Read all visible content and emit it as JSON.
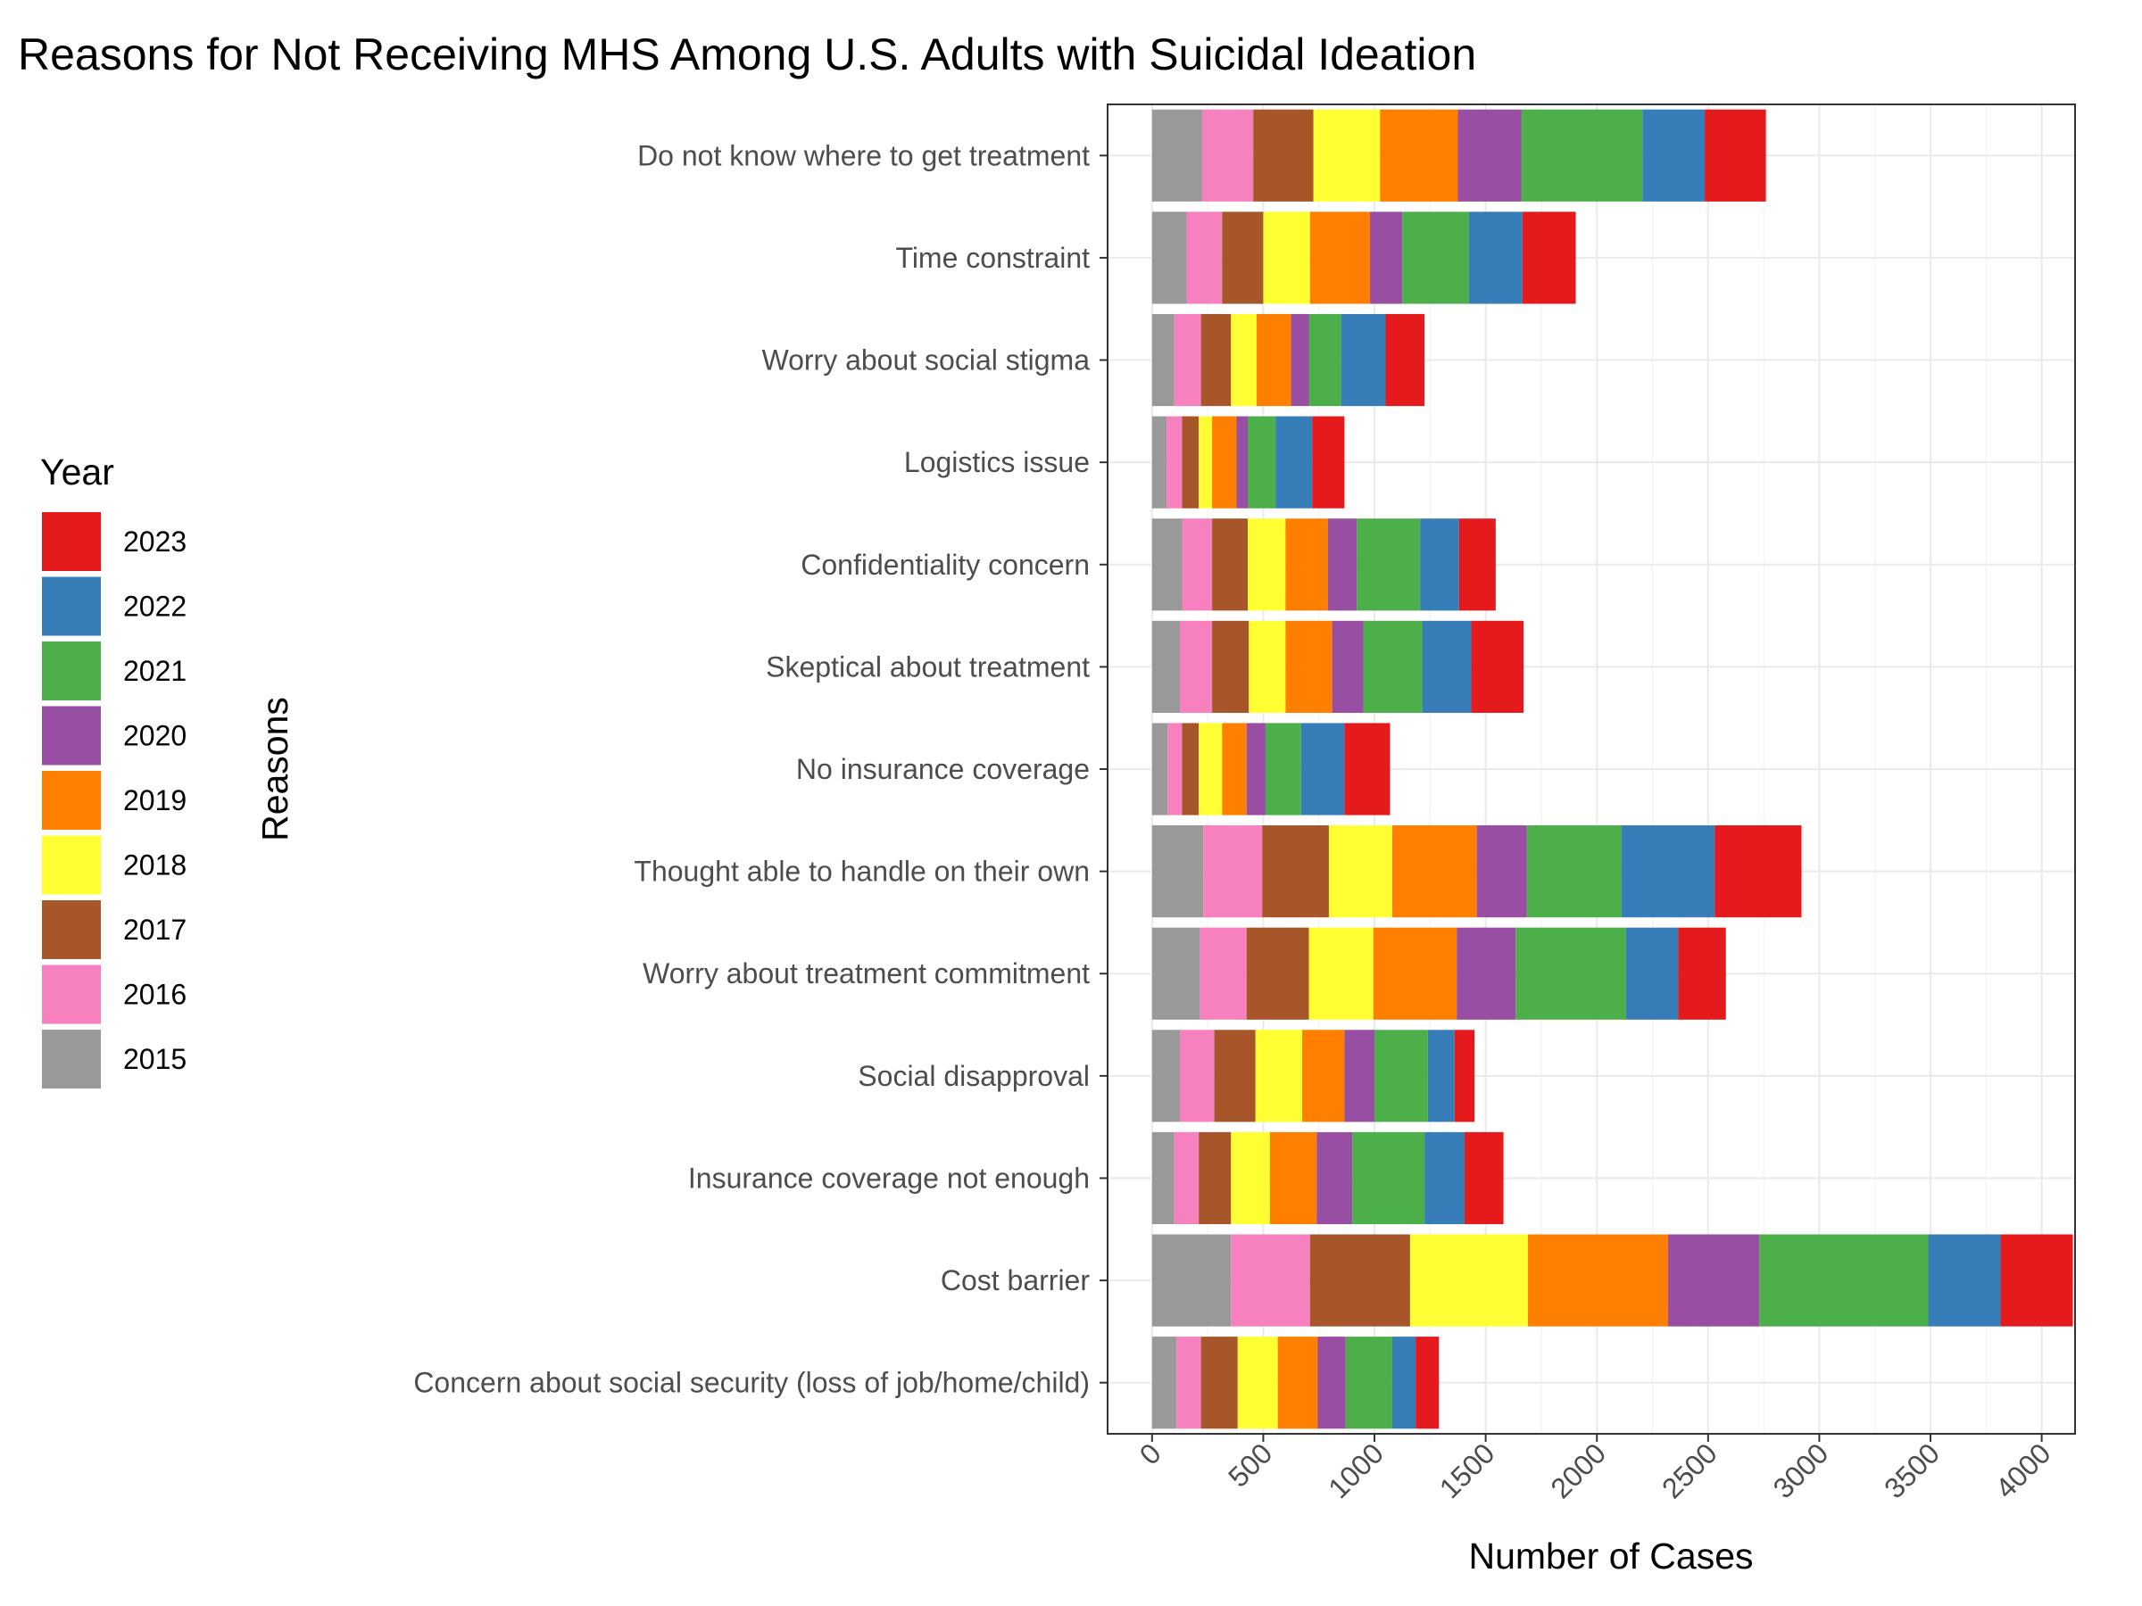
{
  "chart_data": {
    "type": "bar",
    "orientation": "horizontal",
    "stacked": true,
    "title": "Reasons for Not Receiving MHS Among U.S. Adults with Suicidal Ideation",
    "xlabel": "Number of Cases",
    "ylabel": "Reasons",
    "xlim": [
      -200,
      4150
    ],
    "xticks": [
      0,
      500,
      1000,
      1500,
      2000,
      2500,
      3000,
      3500,
      4000
    ],
    "grid": true,
    "legend": {
      "title": "Year",
      "position": "left"
    },
    "categories": [
      "Do not know where to get treatment",
      "Time constraint",
      "Worry about social stigma",
      "Logistics issue",
      "Confidentiality concern",
      "Skeptical about treatment",
      "No insurance coverage",
      "Thought able to handle on their own",
      "Worry about treatment commitment",
      "Social disapproval",
      "Insurance coverage not enough",
      "Cost barrier",
      "Concern about social security (loss of job/home/child)"
    ],
    "series": [
      {
        "name": "2015",
        "color": "#999999",
        "values": [
          225,
          155,
          100,
          65,
          135,
          125,
          70,
          230,
          215,
          125,
          100,
          355,
          110
        ]
      },
      {
        "name": "2016",
        "color": "#F781BF",
        "values": [
          230,
          160,
          120,
          70,
          135,
          145,
          65,
          265,
          210,
          155,
          110,
          355,
          110
        ]
      },
      {
        "name": "2017",
        "color": "#A65628",
        "values": [
          270,
          185,
          135,
          75,
          160,
          165,
          75,
          300,
          280,
          185,
          145,
          450,
          165
        ]
      },
      {
        "name": "2018",
        "color": "#FFFF33",
        "values": [
          300,
          210,
          115,
          60,
          170,
          165,
          105,
          285,
          290,
          210,
          175,
          530,
          180
        ]
      },
      {
        "name": "2019",
        "color": "#FF7F00",
        "values": [
          350,
          270,
          155,
          110,
          190,
          210,
          110,
          380,
          375,
          190,
          210,
          630,
          180
        ]
      },
      {
        "name": "2020",
        "color": "#984EA3",
        "values": [
          285,
          145,
          80,
          50,
          130,
          140,
          85,
          225,
          265,
          135,
          160,
          410,
          125
        ]
      },
      {
        "name": "2021",
        "color": "#4DAF4A",
        "values": [
          545,
          300,
          145,
          125,
          285,
          265,
          160,
          425,
          495,
          240,
          325,
          760,
          210
        ]
      },
      {
        "name": "2022",
        "color": "#377EB8",
        "values": [
          280,
          240,
          200,
          165,
          175,
          220,
          195,
          420,
          235,
          120,
          180,
          325,
          105
        ]
      },
      {
        "name": "2023",
        "color": "#E41A1C",
        "values": [
          275,
          240,
          175,
          145,
          165,
          235,
          205,
          390,
          215,
          90,
          175,
          325,
          105
        ]
      }
    ]
  }
}
